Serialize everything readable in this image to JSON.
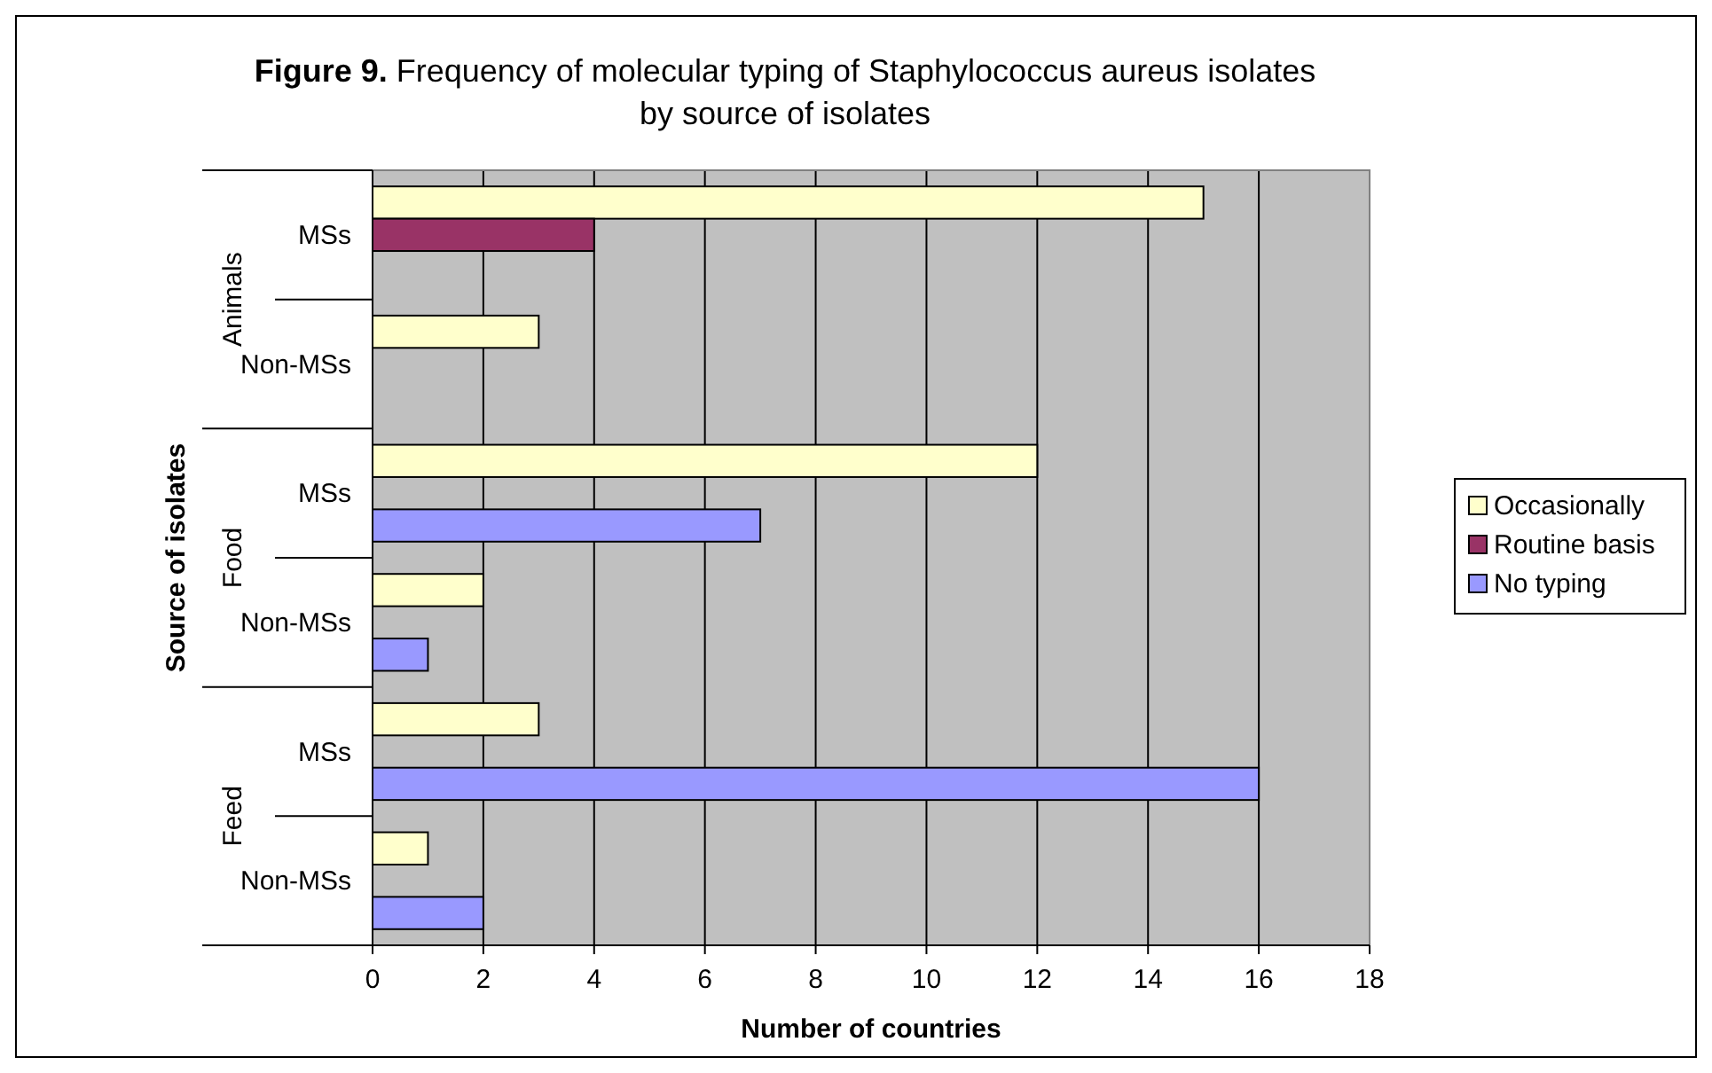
{
  "chart_data": {
    "type": "bar",
    "orientation": "horizontal",
    "title": "Figure 9. Frequency of molecular typing of Staphylococcus aureus isolates by source of isolates",
    "xlabel": "Number of countries",
    "ylabel": "Source of isolates",
    "categories": [
      "MSs",
      "Non-MSs",
      "MSs",
      "Non-MSs",
      "MSs",
      "Non-MSs"
    ],
    "annotations": [
      "Animals",
      "Food",
      "Feed"
    ],
    "series": [
      {
        "name": "Occasionally",
        "color": "#ffffcc",
        "values": [
          15,
          3,
          12,
          2,
          3,
          1
        ]
      },
      {
        "name": "Routine basis",
        "color": "#993366",
        "values": [
          4,
          null,
          null,
          null,
          null,
          null
        ]
      },
      {
        "name": "No typing",
        "color": "#9999ff",
        "values": [
          null,
          null,
          7,
          1,
          16,
          2
        ]
      }
    ],
    "xlim": [
      0,
      18
    ],
    "xticks": [
      0,
      2,
      4,
      6,
      8,
      10,
      12,
      14,
      16,
      18
    ],
    "grid": "x",
    "legend": "right"
  }
}
